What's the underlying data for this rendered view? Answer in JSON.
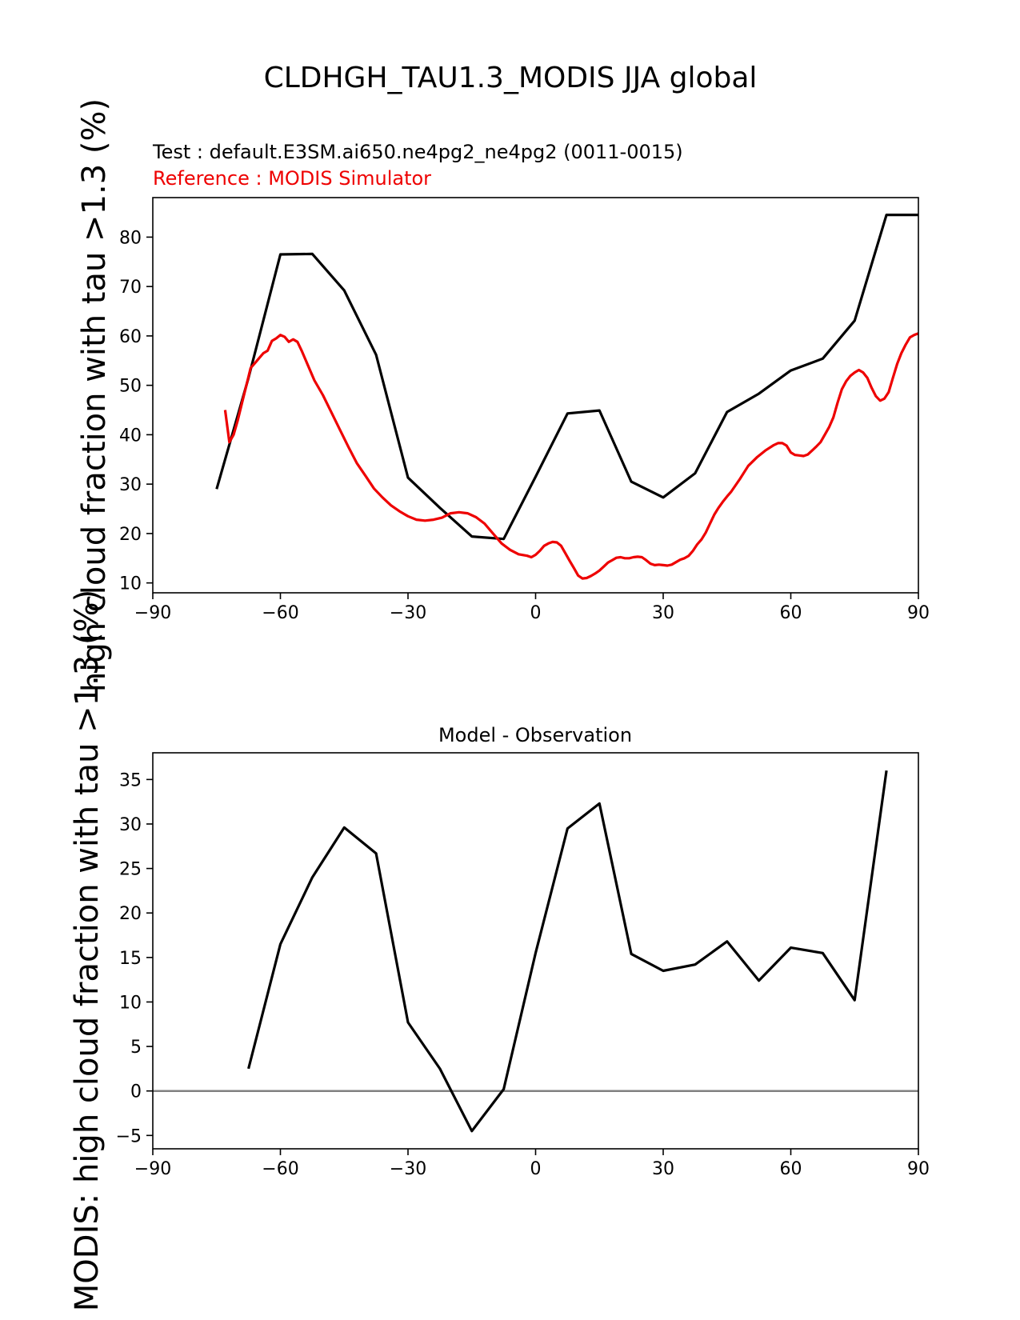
{
  "figure": {
    "suptitle": "CLDHGH_TAU1.3_MODIS JJA global",
    "test_label": "Test : default.E3SM.ai650.ne4pg2_ne4pg2 (0011-0015)",
    "reference_label": "Reference : MODIS Simulator"
  },
  "colors": {
    "test": "#000000",
    "reference": "#ee0000",
    "zero_line": "#808080",
    "text": "#000000"
  },
  "chart_data": [
    {
      "type": "line",
      "title": "",
      "xlabel": "",
      "ylabel": "high cloud fraction with tau >1.3 (%)",
      "xlim": [
        -90,
        90
      ],
      "ylim": [
        8,
        88
      ],
      "xticks": [
        -90,
        -60,
        -30,
        0,
        30,
        60,
        90
      ],
      "xtick_labels": [
        "−90",
        "−60",
        "−30",
        "0",
        "30",
        "60",
        "90"
      ],
      "yticks": [
        10,
        20,
        30,
        40,
        50,
        60,
        70,
        80
      ],
      "ytick_labels": [
        "10",
        "20",
        "30",
        "40",
        "50",
        "60",
        "70",
        "80"
      ],
      "grid": false,
      "series": [
        {
          "name": "Test",
          "color_key": "test",
          "x": [
            -75,
            -67.5,
            -60,
            -52.5,
            -45,
            -37.5,
            -30,
            -22.5,
            -15,
            -7.5,
            0,
            7.5,
            15,
            22.5,
            30,
            37.5,
            45,
            52.5,
            60,
            67.5,
            75,
            82.5,
            90
          ],
          "y": [
            29,
            51.5,
            76.5,
            76.6,
            69.2,
            56.2,
            31.3,
            25.2,
            19.4,
            18.9,
            31.5,
            44.3,
            44.9,
            30.5,
            27.3,
            32.2,
            44.6,
            48.3,
            53,
            55.4,
            63.1,
            84.5,
            84.5
          ]
        },
        {
          "name": "Reference",
          "color_key": "reference",
          "x": [
            -73,
            -72,
            -71,
            -70,
            -69,
            -68,
            -67,
            -66,
            -65,
            -64,
            -63,
            -62,
            -61,
            -60,
            -59,
            -58,
            -57,
            -56,
            -55,
            -54,
            -52,
            -50,
            -48,
            -46,
            -44,
            -42,
            -40,
            -38,
            -36,
            -34,
            -32,
            -30,
            -28,
            -26,
            -24,
            -22,
            -20,
            -18,
            -16,
            -14,
            -12,
            -10,
            -8,
            -6,
            -4,
            -2,
            -1,
            0,
            1,
            2,
            3,
            4,
            5,
            6,
            7,
            8,
            9,
            10,
            11,
            12,
            13,
            14,
            15,
            16,
            17,
            18,
            19,
            20,
            21,
            22,
            23,
            24,
            25,
            26,
            27,
            28,
            29,
            30,
            31,
            32,
            33,
            34,
            35,
            36,
            37,
            38,
            39,
            40,
            41,
            42,
            43,
            44,
            45,
            46,
            48,
            50,
            52,
            54,
            56,
            57,
            58,
            59,
            60,
            61,
            62,
            63,
            64,
            65,
            66,
            67,
            68,
            69,
            70,
            71,
            72,
            73,
            74,
            75,
            76,
            77,
            78,
            79,
            80,
            81,
            82,
            83,
            84,
            85,
            86,
            87,
            88,
            89,
            90
          ],
          "y": [
            45,
            38.5,
            40,
            43,
            46.5,
            50,
            53.5,
            54.5,
            55.5,
            56.5,
            57,
            59,
            59.5,
            60.2,
            59.8,
            58.8,
            59.3,
            58.8,
            57,
            55,
            51,
            48,
            44.5,
            41,
            37.5,
            34.2,
            31.7,
            29.1,
            27.3,
            25.7,
            24.5,
            23.5,
            22.8,
            22.6,
            22.8,
            23.2,
            24.1,
            24.3,
            24.1,
            23.3,
            22,
            20,
            18,
            16.7,
            15.8,
            15.5,
            15.2,
            15.7,
            16.5,
            17.5,
            18,
            18.3,
            18.2,
            17.5,
            16,
            14.5,
            13,
            11.5,
            10.9,
            11,
            11.4,
            11.9,
            12.5,
            13.3,
            14.1,
            14.6,
            15.1,
            15.2,
            15,
            15,
            15.2,
            15.3,
            15.2,
            14.6,
            13.9,
            13.6,
            13.7,
            13.6,
            13.5,
            13.7,
            14.2,
            14.7,
            15,
            15.5,
            16.5,
            17.8,
            18.8,
            20.2,
            22,
            23.8,
            25.2,
            26.4,
            27.5,
            28.5,
            31,
            33.7,
            35.4,
            36.8,
            37.9,
            38.3,
            38.3,
            37.8,
            36.4,
            35.9,
            35.8,
            35.7,
            36,
            36.8,
            37.6,
            38.5,
            40,
            41.5,
            43.5,
            46.5,
            49.2,
            50.8,
            51.9,
            52.6,
            53.1,
            52.6,
            51.5,
            49.5,
            47.8,
            46.9,
            47.3,
            48.6,
            51.5,
            54.3,
            56.5,
            58.2,
            59.7,
            60.2,
            60.5
          ]
        }
      ]
    },
    {
      "type": "line",
      "title": "Model - Observation",
      "xlabel": "",
      "ylabel": "MODIS: high cloud fraction with tau >1.3 (%)",
      "xlim": [
        -90,
        90
      ],
      "ylim": [
        -6.5,
        38
      ],
      "xticks": [
        -90,
        -60,
        -30,
        0,
        30,
        60,
        90
      ],
      "xtick_labels": [
        "−90",
        "−60",
        "−30",
        "0",
        "30",
        "60",
        "90"
      ],
      "yticks": [
        -5,
        0,
        5,
        10,
        15,
        20,
        25,
        30,
        35
      ],
      "ytick_labels": [
        "−5",
        "0",
        "5",
        "10",
        "15",
        "20",
        "25",
        "30",
        "35"
      ],
      "grid": false,
      "reference_line": 0,
      "series": [
        {
          "name": "Model - Observation",
          "color_key": "test",
          "x": [
            -67.5,
            -60,
            -52.5,
            -45,
            -37.5,
            -30,
            -22.5,
            -15,
            -7.5,
            0,
            7.5,
            15,
            22.5,
            30,
            37.5,
            45,
            52.5,
            60,
            67.5,
            75,
            82.5
          ],
          "y": [
            2.5,
            16.5,
            24,
            29.6,
            26.7,
            7.7,
            2.5,
            -4.5,
            0.2,
            15.5,
            29.5,
            32.3,
            15.4,
            13.5,
            14.2,
            16.8,
            12.4,
            16.1,
            15.5,
            10.2,
            36
          ]
        }
      ]
    }
  ]
}
